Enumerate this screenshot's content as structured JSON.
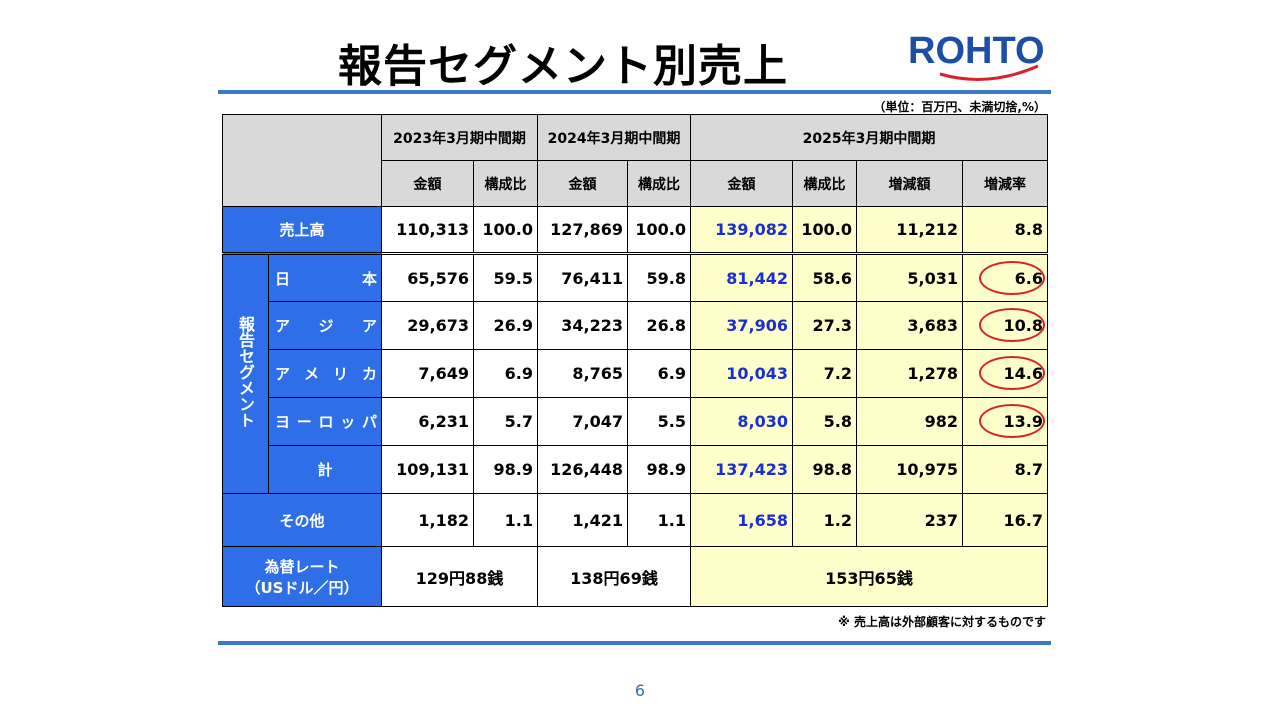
{
  "title": "報告セグメント別売上",
  "logo_text": "ROHTO",
  "unit_note": "（単位：百万円、未満切捨,%）",
  "footnote": "※  売上高は外部顧客に対するものです",
  "page_number": "6",
  "colors": {
    "accent_blue": "#2e6ee6",
    "rule_blue": "#3b78c8",
    "highlight_yellow": "#ffffcc",
    "amount_blue": "#1a2fd0",
    "circle_red": "#d8222a"
  },
  "table": {
    "periods": [
      "2023年3月期中間期",
      "2024年3月期中間期",
      "2025年3月期中間期"
    ],
    "subheaders": [
      "金額",
      "構成比",
      "金額",
      "構成比",
      "金額",
      "構成比",
      "増減額",
      "増減率"
    ],
    "segment_group_label": "報告セグメント",
    "rows": {
      "sales": {
        "label": "売上高",
        "values": [
          "110,313",
          "100.0",
          "127,869",
          "100.0",
          "139,082",
          "100.0",
          "11,212",
          "8.8"
        ]
      },
      "japan": {
        "label": [
          "日",
          "本"
        ],
        "values": [
          "65,576",
          "59.5",
          "76,411",
          "59.8",
          "81,442",
          "58.6",
          "5,031",
          "6.6"
        ]
      },
      "asia": {
        "label": [
          "ア",
          "ジ",
          "ア"
        ],
        "values": [
          "29,673",
          "26.9",
          "34,223",
          "26.8",
          "37,906",
          "27.3",
          "3,683",
          "10.8"
        ]
      },
      "america": {
        "label": [
          "ア",
          "メ",
          "リ",
          "カ"
        ],
        "values": [
          "7,649",
          "6.9",
          "8,765",
          "6.9",
          "10,043",
          "7.2",
          "1,278",
          "14.6"
        ]
      },
      "europe": {
        "label": [
          "ヨ",
          "ー",
          "ロ",
          "ッ",
          "パ"
        ],
        "values": [
          "6,231",
          "5.7",
          "7,047",
          "5.5",
          "8,030",
          "5.8",
          "982",
          "13.9"
        ]
      },
      "subtotal": {
        "label": "計",
        "values": [
          "109,131",
          "98.9",
          "126,448",
          "98.9",
          "137,423",
          "98.8",
          "10,975",
          "8.7"
        ]
      },
      "other": {
        "label": "その他",
        "values": [
          "1,182",
          "1.1",
          "1,421",
          "1.1",
          "1,658",
          "1.2",
          "237",
          "16.7"
        ]
      }
    },
    "fx": {
      "label_line1": "為替レート",
      "label_line2": "（USドル／円）",
      "values": [
        "129円88銭",
        "138円69銭",
        "153円65銭"
      ]
    }
  }
}
